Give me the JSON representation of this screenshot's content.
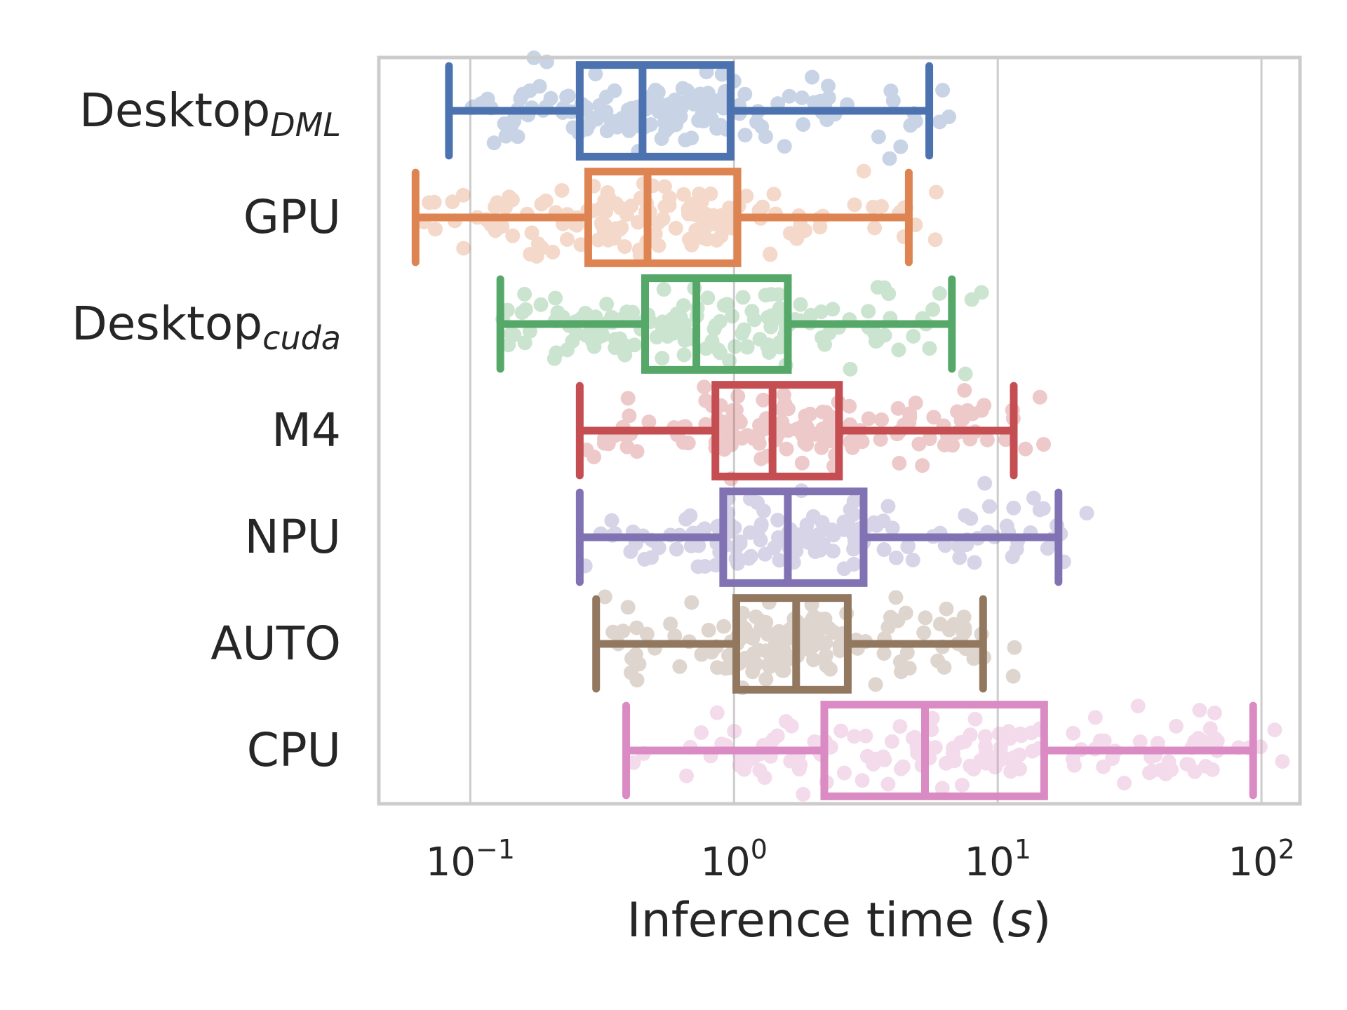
{
  "chart_data": {
    "type": "box",
    "xlabel": {
      "text": "Inference time (",
      "unit": "s",
      "close": ")"
    },
    "xscale": "log",
    "xlim": [
      0.045,
      140
    ],
    "grid": "vertical",
    "xticks": [
      {
        "base": "10",
        "exp": "−1",
        "value": 0.1
      },
      {
        "base": "10",
        "exp": "0",
        "value": 1
      },
      {
        "base": "10",
        "exp": "1",
        "value": 10
      },
      {
        "base": "10",
        "exp": "2",
        "value": 100
      }
    ],
    "series": [
      {
        "label": "Desktop",
        "sub": "DML",
        "color": "#4c72b0",
        "whisker_low": 0.083,
        "q1": 0.26,
        "median": 0.45,
        "q3": 0.97,
        "whisker_high": 5.5
      },
      {
        "label": "GPU",
        "sub": "",
        "color": "#dd8452",
        "whisker_low": 0.062,
        "q1": 0.28,
        "median": 0.47,
        "q3": 1.03,
        "whisker_high": 4.6
      },
      {
        "label": "Desktop",
        "sub": "cuda",
        "color": "#55a868",
        "whisker_low": 0.13,
        "q1": 0.46,
        "median": 0.72,
        "q3": 1.6,
        "whisker_high": 6.7
      },
      {
        "label": "M4",
        "sub": "",
        "color": "#c44e52",
        "whisker_low": 0.26,
        "q1": 0.85,
        "median": 1.4,
        "q3": 2.5,
        "whisker_high": 11.5
      },
      {
        "label": "NPU",
        "sub": "",
        "color": "#8172b3",
        "whisker_low": 0.26,
        "q1": 0.91,
        "median": 1.6,
        "q3": 3.1,
        "whisker_high": 17.0
      },
      {
        "label": "AUTO",
        "sub": "",
        "color": "#937860",
        "whisker_low": 0.3,
        "q1": 1.02,
        "median": 1.72,
        "q3": 2.7,
        "whisker_high": 8.8
      },
      {
        "label": "CPU",
        "sub": "",
        "color": "#da8bc3",
        "whisker_low": 0.39,
        "q1": 2.2,
        "median": 5.3,
        "q3": 15.0,
        "whisker_high": 93.0
      }
    ]
  }
}
